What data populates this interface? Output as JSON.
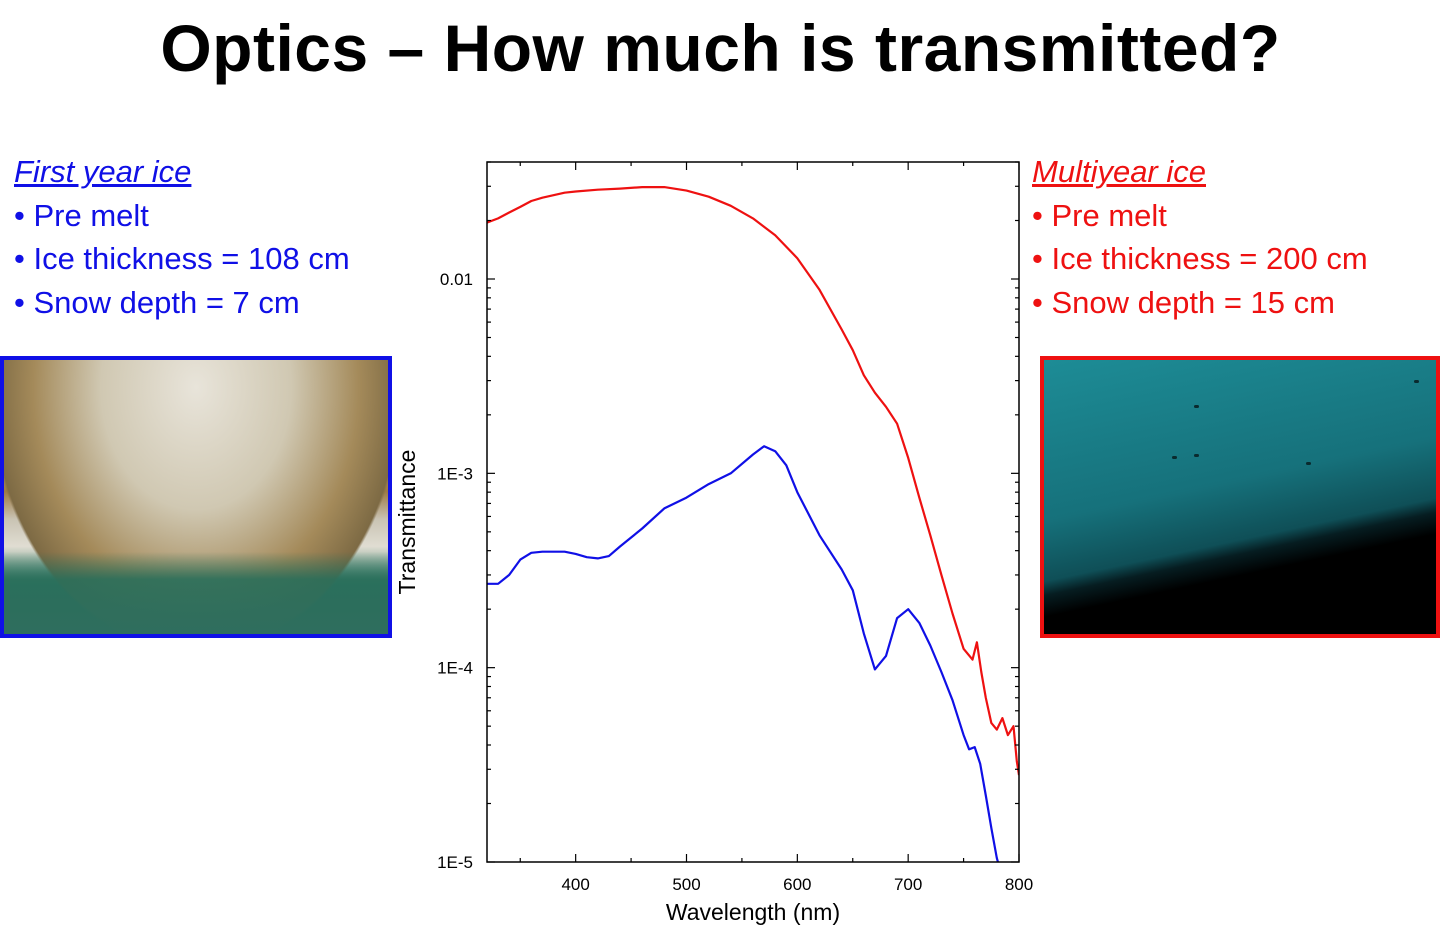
{
  "slide": {
    "title": "Optics – How much is transmitted?"
  },
  "left_panel": {
    "heading": "First year ice ",
    "lines": [
      "• Pre melt",
      "• Ice thickness = 108 cm",
      "• Snow depth = 7 cm"
    ],
    "color": "#1010e6"
  },
  "right_panel": {
    "heading": "Multiyear ice ",
    "lines": [
      "• Pre melt",
      "• Ice thickness = 200 cm",
      "• Snow depth = 15 cm"
    ],
    "color": "#ee1111"
  },
  "photos": {
    "first_year_border": "#1010e6",
    "multiyear_border": "#ee1111"
  },
  "chart_data": {
    "type": "line",
    "title": "",
    "xlabel": "Wavelength (nm)",
    "ylabel": "Transmittance",
    "xlim": [
      320,
      800
    ],
    "ylim": [
      1e-05,
      0.04
    ],
    "yscale": "log",
    "x_ticks": [
      400,
      500,
      600,
      700,
      800
    ],
    "y_ticks": [
      {
        "value": 0.01,
        "label": "0.01"
      },
      {
        "value": 0.001,
        "label": "1E-3"
      },
      {
        "value": 0.0001,
        "label": "1E-4"
      },
      {
        "value": 1e-05,
        "label": "1E-5"
      }
    ],
    "grid": false,
    "legend": "none",
    "series": [
      {
        "color": "#ee1111",
        "points": [
          [
            320,
            0.0195
          ],
          [
            330,
            0.0205
          ],
          [
            340,
            0.022
          ],
          [
            350,
            0.0235
          ],
          [
            360,
            0.0252
          ],
          [
            370,
            0.0262
          ],
          [
            380,
            0.027
          ],
          [
            390,
            0.0278
          ],
          [
            400,
            0.0282
          ],
          [
            420,
            0.0288
          ],
          [
            440,
            0.0292
          ],
          [
            460,
            0.0297
          ],
          [
            480,
            0.0297
          ],
          [
            500,
            0.0285
          ],
          [
            520,
            0.0265
          ],
          [
            540,
            0.0238
          ],
          [
            560,
            0.0205
          ],
          [
            580,
            0.0168
          ],
          [
            600,
            0.0128
          ],
          [
            620,
            0.0088
          ],
          [
            640,
            0.0055
          ],
          [
            650,
            0.0043
          ],
          [
            660,
            0.0032
          ],
          [
            670,
            0.0026
          ],
          [
            680,
            0.0022
          ],
          [
            690,
            0.0018
          ],
          [
            700,
            0.0012
          ],
          [
            710,
            0.00075
          ],
          [
            720,
            0.00048
          ],
          [
            730,
            0.0003
          ],
          [
            740,
            0.00019
          ],
          [
            750,
            0.000125
          ],
          [
            758,
            0.00011
          ],
          [
            762,
            0.000135
          ],
          [
            766,
            9.5e-05
          ],
          [
            770,
            7e-05
          ],
          [
            775,
            5.2e-05
          ],
          [
            780,
            4.8e-05
          ],
          [
            785,
            5.5e-05
          ],
          [
            790,
            4.5e-05
          ],
          [
            795,
            5e-05
          ],
          [
            798,
            3.3e-05
          ],
          [
            800,
            2.8e-05
          ]
        ]
      },
      {
        "color": "#1010e6",
        "points": [
          [
            320,
            0.00027
          ],
          [
            330,
            0.00027
          ],
          [
            340,
            0.0003
          ],
          [
            350,
            0.00036
          ],
          [
            360,
            0.00039
          ],
          [
            370,
            0.000395
          ],
          [
            380,
            0.000395
          ],
          [
            390,
            0.000395
          ],
          [
            400,
            0.000385
          ],
          [
            410,
            0.00037
          ],
          [
            420,
            0.000365
          ],
          [
            430,
            0.000375
          ],
          [
            440,
            0.00042
          ],
          [
            460,
            0.00052
          ],
          [
            480,
            0.00066
          ],
          [
            500,
            0.00075
          ],
          [
            520,
            0.00088
          ],
          [
            540,
            0.001
          ],
          [
            560,
            0.00125
          ],
          [
            570,
            0.00138
          ],
          [
            580,
            0.0013
          ],
          [
            590,
            0.0011
          ],
          [
            600,
            0.0008
          ],
          [
            620,
            0.00048
          ],
          [
            640,
            0.00032
          ],
          [
            650,
            0.00025
          ],
          [
            660,
            0.00015
          ],
          [
            670,
            9.8e-05
          ],
          [
            680,
            0.000115
          ],
          [
            690,
            0.00018
          ],
          [
            700,
            0.0002
          ],
          [
            710,
            0.00017
          ],
          [
            720,
            0.00013
          ],
          [
            730,
            9.5e-05
          ],
          [
            740,
            6.8e-05
          ],
          [
            750,
            4.5e-05
          ],
          [
            755,
            3.8e-05
          ],
          [
            760,
            3.9e-05
          ],
          [
            765,
            3.2e-05
          ],
          [
            770,
            2.2e-05
          ],
          [
            775,
            1.5e-05
          ],
          [
            780,
            1.05e-05
          ],
          [
            782,
            9.5e-06
          ]
        ]
      }
    ]
  }
}
